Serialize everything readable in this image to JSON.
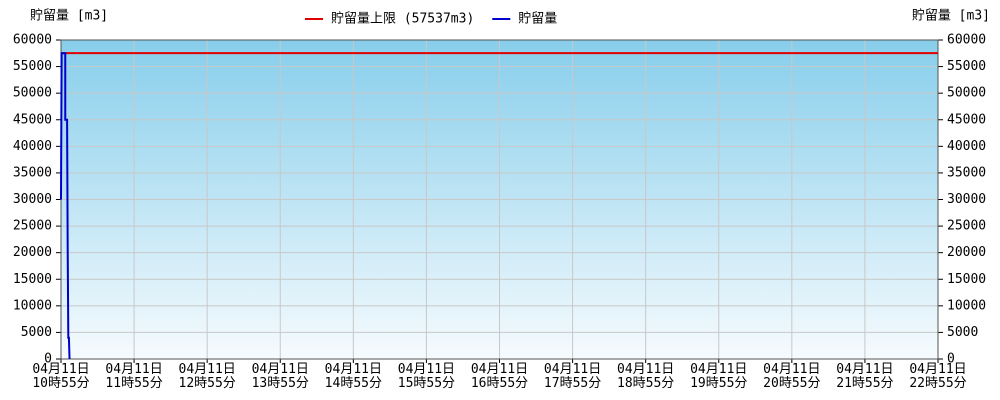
{
  "chart_data": {
    "type": "line",
    "ylabel_left": "貯留量 [m3]",
    "ylabel_right": "貯留量 [m3]",
    "xlim": [
      655,
      1375
    ],
    "xticks": [
      {
        "value": 655,
        "label": "04月11日\n10時55分"
      },
      {
        "value": 715,
        "label": "04月11日\n11時55分"
      },
      {
        "value": 775,
        "label": "04月11日\n12時55分"
      },
      {
        "value": 835,
        "label": "04月11日\n13時55分"
      },
      {
        "value": 895,
        "label": "04月11日\n14時55分"
      },
      {
        "value": 955,
        "label": "04月11日\n15時55分"
      },
      {
        "value": 1015,
        "label": "04月11日\n16時55分"
      },
      {
        "value": 1075,
        "label": "04月11日\n17時55分"
      },
      {
        "value": 1135,
        "label": "04月11日\n18時55分"
      },
      {
        "value": 1195,
        "label": "04月11日\n19時55分"
      },
      {
        "value": 1255,
        "label": "04月11日\n20時55分"
      },
      {
        "value": 1315,
        "label": "04月11日\n21時55分"
      },
      {
        "value": 1375,
        "label": "04月11日\n22時55分"
      }
    ],
    "ylim": [
      0,
      60000
    ],
    "yticks": [
      0,
      5000,
      10000,
      15000,
      20000,
      25000,
      30000,
      35000,
      40000,
      45000,
      50000,
      55000,
      60000
    ],
    "y2lim": [
      0,
      60000
    ],
    "y2ticks": [
      0,
      5000,
      10000,
      15000,
      20000,
      25000,
      30000,
      35000,
      40000,
      45000,
      50000,
      55000,
      60000
    ],
    "grid": true,
    "limit": {
      "name": "貯留量上限 (57537m3)",
      "color": "#e00000",
      "value": 57537
    },
    "series": [
      {
        "name": "貯留量",
        "color": "#0000cc",
        "x": [
          655,
          655.5,
          658.5,
          658.5,
          660,
          660.5,
          661,
          661.5,
          662
        ],
        "values": [
          30000,
          57500,
          57500,
          45000,
          45000,
          20500,
          4000,
          4000,
          0
        ]
      }
    ]
  }
}
